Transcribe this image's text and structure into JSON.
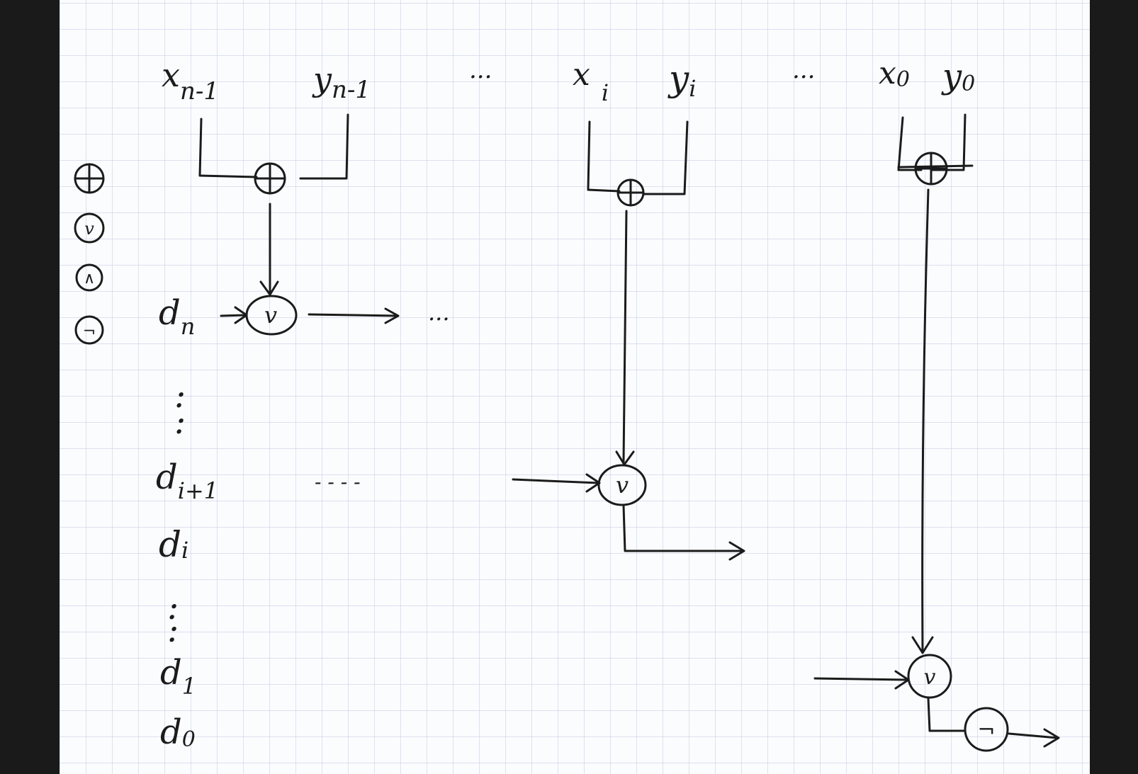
{
  "colors": {
    "background": "#1a1a1a",
    "paper": "#fbfcfe",
    "grid": "#c9cfe6",
    "ink": "#1b1b1b"
  },
  "inputs": {
    "x_n_minus_1": {
      "base": "x",
      "sub": "n-1"
    },
    "y_n_minus_1": {
      "base": "y",
      "sub": "n-1"
    },
    "dots_1": "...",
    "x_i": {
      "base": "x",
      "sub": "i"
    },
    "y_i": {
      "base": "y",
      "sub": "i"
    },
    "dots_2": "...",
    "x_0": {
      "base": "x",
      "sub": "0"
    },
    "y_0": {
      "base": "y",
      "sub": "0"
    }
  },
  "legend": {
    "xor": "⊕",
    "or": "v",
    "and": "∧",
    "not": "¬"
  },
  "outputs": {
    "d_n": {
      "base": "d",
      "sub": "n"
    },
    "vdots_1": ":",
    "d_i_plus_1": {
      "base": "d",
      "sub": "i+1"
    },
    "d_i": {
      "base": "d",
      "sub": "i"
    },
    "vdots_2": ":",
    "d_1": {
      "base": "d",
      "sub": "1"
    },
    "d_0": {
      "base": "d",
      "sub": "0"
    }
  },
  "gates": {
    "xor_symbol": "⊕",
    "or_symbol": "v",
    "not_symbol": "¬"
  },
  "flow": {
    "dots_after_dn": "...",
    "dashes_i_plus_1": "- - - -"
  }
}
